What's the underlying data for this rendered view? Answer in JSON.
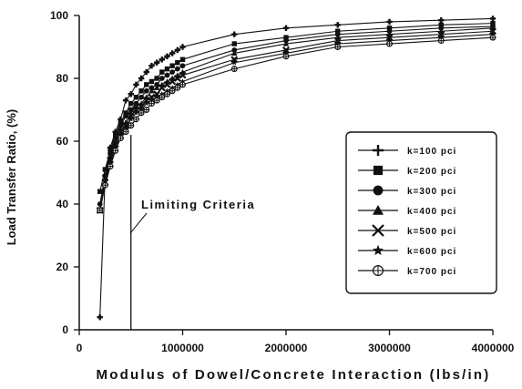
{
  "chart_data": {
    "type": "line",
    "xlabel": "Modulus of Dowel/Concrete Interaction (lbs/in)",
    "ylabel": "Load Transfer Ratio, (%)",
    "xlim": [
      0,
      4000000
    ],
    "ylim": [
      0,
      100
    ],
    "xticks": [
      0,
      1000000,
      2000000,
      3000000,
      4000000
    ],
    "xtick_labels": [
      "0",
      "1000000",
      "2000000",
      "3000000",
      "4000000"
    ],
    "yticks": [
      0,
      20,
      40,
      60,
      80,
      100
    ],
    "ytick_labels": [
      "0",
      "20",
      "40",
      "60",
      "80",
      "100"
    ],
    "grid": false,
    "legend_position": "right",
    "x": [
      200000,
      250000,
      300000,
      350000,
      400000,
      450000,
      500000,
      550000,
      600000,
      650000,
      700000,
      750000,
      800000,
      850000,
      900000,
      950000,
      1000000,
      1500000,
      2000000,
      2500000,
      3000000,
      3500000,
      4000000
    ],
    "series": [
      {
        "name": "k=100 pci",
        "marker": "plus",
        "values": [
          4,
          49,
          58,
          63,
          67,
          73,
          75,
          78,
          80,
          82,
          84,
          85,
          86,
          87,
          88,
          89,
          90,
          94,
          96,
          97,
          98,
          98.5,
          99
        ]
      },
      {
        "name": "k=200 pci",
        "marker": "square",
        "values": [
          44,
          51,
          57,
          62,
          66,
          69,
          72,
          74,
          76,
          78,
          79,
          80,
          82,
          83,
          84,
          85,
          86,
          91,
          93,
          95,
          96,
          97,
          97.5
        ]
      },
      {
        "name": "k=300 pci",
        "marker": "circle",
        "values": [
          40,
          49,
          56,
          61,
          65,
          68,
          70,
          72,
          74,
          76,
          77,
          78,
          80,
          81,
          82,
          83,
          84,
          89,
          92,
          94,
          95,
          96,
          96.5
        ]
      },
      {
        "name": "k=400 pci",
        "marker": "triangle",
        "values": [
          38,
          48,
          55,
          60,
          64,
          66,
          69,
          71,
          72,
          74,
          76,
          77,
          78,
          79,
          80,
          81,
          82,
          88,
          91,
          93,
          94,
          95,
          96
        ]
      },
      {
        "name": "k=500 pci",
        "marker": "x",
        "values": [
          38,
          47,
          54,
          59,
          63,
          65,
          68,
          70,
          71,
          73,
          74,
          75,
          77,
          78,
          79,
          80,
          81,
          86,
          89,
          92,
          93,
          94,
          95
        ]
      },
      {
        "name": "k=600 pci",
        "marker": "star",
        "values": [
          38,
          47,
          53,
          58,
          62,
          64,
          67,
          69,
          70,
          72,
          73,
          74,
          75,
          76,
          77,
          78,
          79,
          85,
          88,
          91,
          92,
          93,
          94
        ]
      },
      {
        "name": "k=700 pci",
        "marker": "circleplus",
        "values": [
          38,
          46,
          52,
          57,
          61,
          63,
          65,
          67,
          69,
          70,
          72,
          73,
          74,
          75,
          76,
          77,
          78,
          83,
          87,
          90,
          91,
          92,
          93
        ]
      }
    ],
    "annotations": [
      {
        "text": "Limiting Criteria",
        "x": 500000
      }
    ]
  }
}
